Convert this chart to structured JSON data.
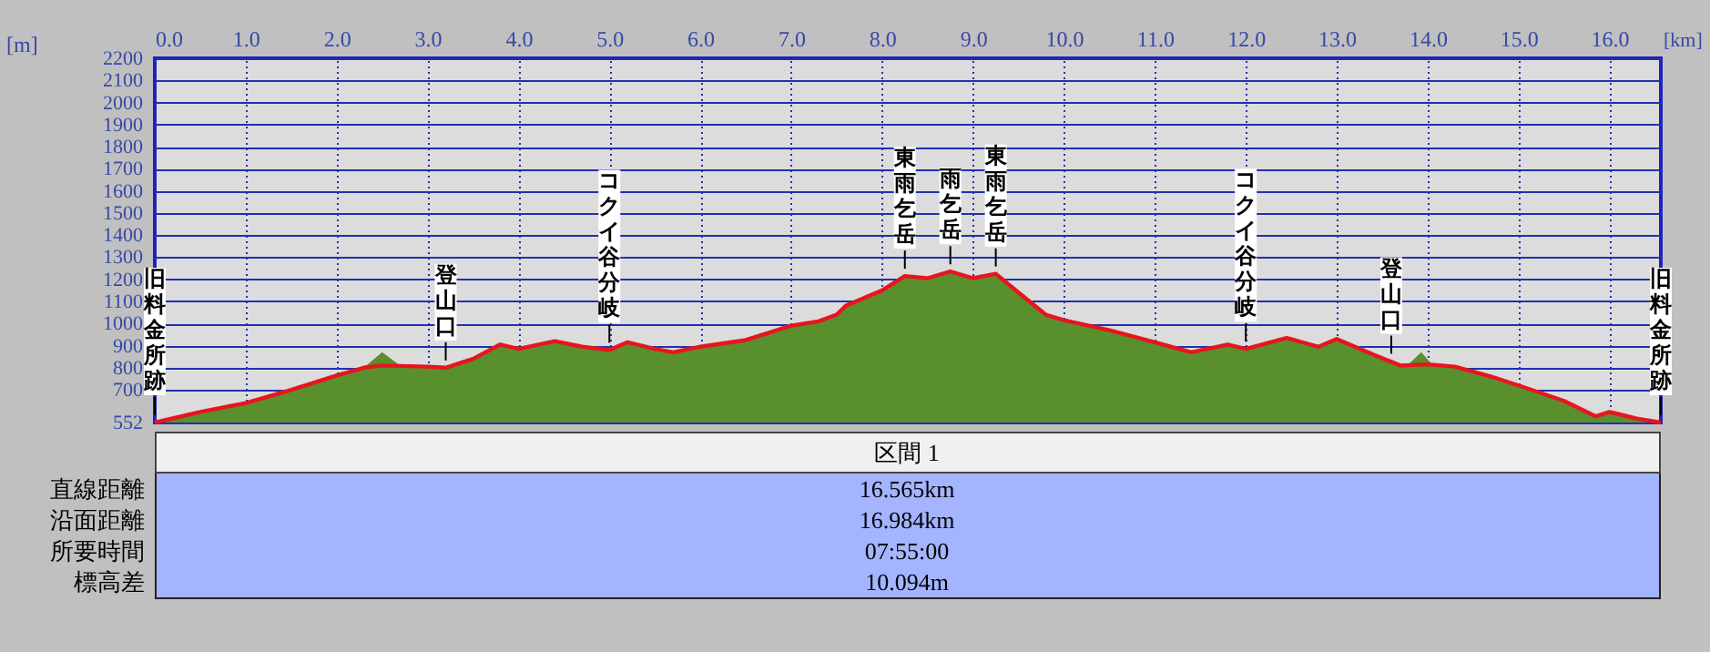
{
  "chart_data": {
    "type": "area",
    "xlabel": "[km]",
    "ylabel": "[m]",
    "xlim": [
      0,
      16.565
    ],
    "ylim": [
      552,
      2200
    ],
    "xticks": [
      {
        "value": 0,
        "label": "0.0"
      },
      {
        "value": 1,
        "label": "1.0"
      },
      {
        "value": 2,
        "label": "2.0"
      },
      {
        "value": 3,
        "label": "3.0"
      },
      {
        "value": 4,
        "label": "4.0"
      },
      {
        "value": 5,
        "label": "5.0"
      },
      {
        "value": 6,
        "label": "6.0"
      },
      {
        "value": 7,
        "label": "7.0"
      },
      {
        "value": 8,
        "label": "8.0"
      },
      {
        "value": 9,
        "label": "9.0"
      },
      {
        "value": 10,
        "label": "10.0"
      },
      {
        "value": 11,
        "label": "11.0"
      },
      {
        "value": 12,
        "label": "12.0"
      },
      {
        "value": 13,
        "label": "13.0"
      },
      {
        "value": 14,
        "label": "14.0"
      },
      {
        "value": 15,
        "label": "15.0"
      },
      {
        "value": 16,
        "label": "16.0"
      }
    ],
    "yticks": [
      552,
      700,
      800,
      900,
      1000,
      1100,
      1200,
      1300,
      1400,
      1500,
      1600,
      1700,
      1800,
      1900,
      2000,
      2100,
      2200
    ],
    "grid": true,
    "series": [
      {
        "color": "#5a8f2e",
        "x": [
          0,
          0.5,
          1,
          1.5,
          2,
          2.3,
          2.5,
          2.7,
          3,
          3.2,
          3.5,
          3.8,
          4,
          4.4,
          4.7,
          5,
          5.2,
          5.5,
          5.7,
          6,
          6.5,
          7,
          7.3,
          7.5,
          7.6,
          8,
          8.25,
          8.5,
          8.75,
          9,
          9.25,
          9.5,
          9.8,
          10,
          10.5,
          11,
          11.4,
          11.8,
          12,
          12.45,
          12.8,
          13,
          13.4,
          13.7,
          13.8,
          13.93,
          14.05,
          14.3,
          14.7,
          15,
          15.5,
          15.85,
          16,
          16.3,
          16.565
        ],
        "values": [
          552,
          600,
          640,
          700,
          765,
          800,
          870,
          810,
          805,
          800,
          840,
          905,
          885,
          920,
          895,
          880,
          915,
          885,
          870,
          895,
          925,
          990,
          1010,
          1040,
          1080,
          1150,
          1215,
          1205,
          1235,
          1205,
          1225,
          1140,
          1040,
          1015,
          970,
          915,
          870,
          905,
          885,
          935,
          895,
          930,
          860,
          810,
          820,
          870,
          815,
          805,
          760,
          720,
          650,
          580,
          600,
          570,
          552
        ]
      },
      {
        "type": "line",
        "color": "#e8141e",
        "x": [
          0,
          0.5,
          1,
          1.5,
          2,
          2.3,
          2.5,
          3,
          3.2,
          3.5,
          3.8,
          4,
          4.4,
          4.7,
          5,
          5.2,
          5.5,
          5.7,
          6,
          6.5,
          7,
          7.3,
          7.5,
          7.6,
          8,
          8.25,
          8.5,
          8.75,
          9,
          9.25,
          9.5,
          9.8,
          10,
          10.5,
          11,
          11.4,
          11.8,
          12,
          12.45,
          12.8,
          13,
          13.4,
          13.7,
          14,
          14.3,
          14.7,
          15,
          15.5,
          15.85,
          16,
          16.3,
          16.565
        ],
        "values": [
          552,
          600,
          640,
          700,
          765,
          800,
          810,
          805,
          800,
          840,
          905,
          885,
          920,
          895,
          880,
          915,
          885,
          870,
          895,
          925,
          990,
          1010,
          1040,
          1080,
          1150,
          1215,
          1205,
          1235,
          1205,
          1225,
          1140,
          1040,
          1015,
          970,
          915,
          870,
          905,
          885,
          935,
          895,
          930,
          860,
          810,
          815,
          805,
          760,
          720,
          650,
          580,
          600,
          570,
          552
        ]
      }
    ],
    "annotations": [
      {
        "text": "旧料金所跡",
        "x": 0,
        "y": 552
      },
      {
        "text": "登山口",
        "x": 3.2,
        "y": 800
      },
      {
        "text": "コクイ谷分岐",
        "x": 5,
        "y": 880
      },
      {
        "text": "東雨乞岳",
        "x": 8.25,
        "y": 1215
      },
      {
        "text": "雨乞岳",
        "x": 8.75,
        "y": 1235
      },
      {
        "text": "東雨乞岳",
        "x": 9.25,
        "y": 1225
      },
      {
        "text": "コクイ谷分岐",
        "x": 12,
        "y": 885
      },
      {
        "text": "登山口",
        "x": 13.6,
        "y": 830
      },
      {
        "text": "旧料金所跡",
        "x": 16.565,
        "y": 552
      },
      "区間 1",
      "直線距離",
      "16.565km",
      "沿面距離",
      "16.984km",
      "所要時間",
      "07:55:00",
      "標高差",
      "10.094m"
    ]
  }
}
